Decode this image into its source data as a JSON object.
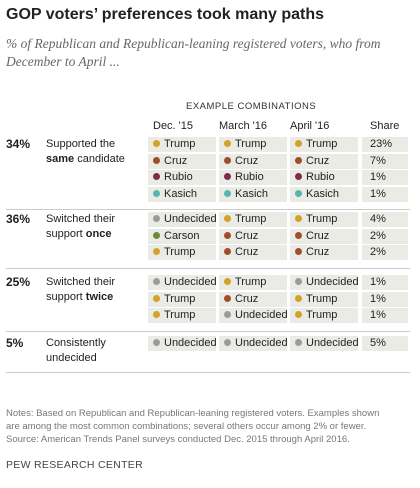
{
  "header": {
    "title": "GOP voters’ preferences took many paths",
    "subtitle_lines": [
      "% of Republican and Republican-leaning registered voters, who from",
      "December to April ..."
    ]
  },
  "table": {
    "super_header": "EXAMPLE COMBINATIONS",
    "columns": [
      "Dec. '15",
      "March '16",
      "April '16",
      "Share"
    ],
    "groups": [
      {
        "total": "34%",
        "label": [
          [
            {
              "text": "Supported the"
            }
          ],
          [
            {
              "text": "same",
              "bold": true
            },
            {
              "text": "candidate"
            }
          ]
        ],
        "rows": [
          [
            "Trump",
            "Trump",
            "Trump",
            "23%"
          ],
          [
            "Cruz",
            "Cruz",
            "Cruz",
            "7%"
          ],
          [
            "Rubio",
            "Rubio",
            "Rubio",
            "1%"
          ],
          [
            "Kasich",
            "Kasich",
            "Kasich",
            "1%"
          ]
        ]
      },
      {
        "total": "36%",
        "label": [
          [
            {
              "text": "Switched their"
            }
          ],
          [
            {
              "text": "support"
            },
            {
              "text": "once",
              "bold": true
            }
          ]
        ],
        "rows": [
          [
            "Undecided",
            "Trump",
            "Trump",
            "4%"
          ],
          [
            "Carson",
            "Cruz",
            "Cruz",
            "2%"
          ],
          [
            "Trump",
            "Cruz",
            "Cruz",
            "2%"
          ]
        ]
      },
      {
        "total": "25%",
        "label": [
          [
            {
              "text": "Switched their"
            }
          ],
          [
            {
              "text": "support"
            },
            {
              "text": "twice",
              "bold": true
            }
          ]
        ],
        "rows": [
          [
            "Undecided",
            "Trump",
            "Undecided",
            "1%"
          ],
          [
            "Trump",
            "Cruz",
            "Trump",
            "1%"
          ],
          [
            "Trump",
            "Undecided",
            "Trump",
            "1%"
          ]
        ]
      },
      {
        "total": "5%",
        "label": [
          [
            {
              "text": "Consistently"
            }
          ],
          [
            {
              "text": "undecided"
            }
          ]
        ],
        "rows": [
          [
            "Undecided",
            "Undecided",
            "Undecided",
            "5%"
          ]
        ]
      }
    ],
    "candidate_colors": {
      "Trump": "#d4a12a",
      "Cruz": "#9c4f2a",
      "Rubio": "#7a2d4c",
      "Kasich": "#5ab3ae",
      "Undecided": "#9b9b9b",
      "Carson": "#6e8a36"
    }
  },
  "footer": {
    "notes": [
      "Notes: Based on Republican and Republican-leaning registered voters. Examples shown",
      "are among the most common combinations; several others occur among 2% or fewer.",
      "Source: American Trends Panel surveys conducted Dec. 2015 through April 2016."
    ],
    "brand": "PEW RESEARCH CENTER"
  }
}
